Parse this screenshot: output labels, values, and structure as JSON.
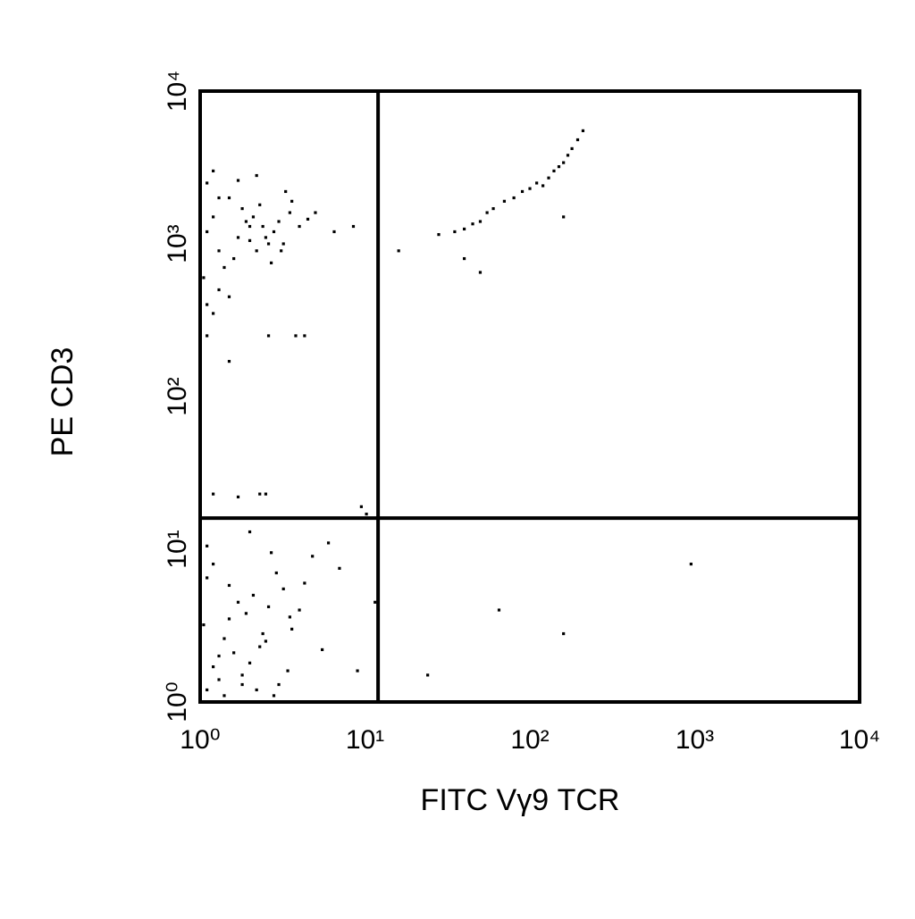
{
  "chart_data": {
    "type": "scatter",
    "x_label": "FITC Vγ9 TCR",
    "y_label": "PE CD3",
    "xscale": "log",
    "yscale": "log",
    "xlim": [
      1,
      10000
    ],
    "ylim": [
      1,
      10000
    ],
    "xticks": [
      {
        "value": 1,
        "label": "10⁰"
      },
      {
        "value": 10,
        "label": "10¹"
      },
      {
        "value": 100,
        "label": "10²"
      },
      {
        "value": 1000,
        "label": "10³"
      },
      {
        "value": 10000,
        "label": "10⁴"
      }
    ],
    "yticks": [
      {
        "value": 1,
        "label": "10⁰"
      },
      {
        "value": 10,
        "label": "10¹"
      },
      {
        "value": 100,
        "label": "10²"
      },
      {
        "value": 1000,
        "label": "10³"
      },
      {
        "value": 10000,
        "label": "10⁴"
      }
    ],
    "quadrant_lines": {
      "x": 12,
      "y": 16
    },
    "x": [
      1.1,
      1.2,
      1.3,
      1.5,
      1.7,
      2.0,
      2.3,
      2.6,
      3.0,
      3.5,
      1.1,
      1.4,
      1.8,
      2.2,
      2.8,
      3.3,
      4.0,
      1.2,
      1.6,
      2.1,
      2.5,
      1.05,
      1.3,
      1.9,
      2.4,
      3.1,
      5.0,
      6.5,
      1.1,
      1.5,
      2.0,
      2.7,
      3.6,
      1.2,
      1.7,
      8.5,
      1.3,
      2.2,
      3.2,
      4.5,
      1.1,
      1.5,
      2.6,
      3.8,
      4.3,
      1.2,
      1.7,
      2.3,
      2.5,
      9.5,
      10.2,
      1.1,
      1.3,
      1.5,
      1.8,
      2.1,
      2.5,
      3.0,
      3.6,
      4.3,
      5.5,
      1.2,
      1.4,
      1.7,
      2.0,
      2.4,
      2.9,
      3.4,
      4.0,
      1.05,
      1.6,
      2.2,
      2.7,
      3.2,
      1.1,
      1.3,
      1.9,
      2.3,
      2.8,
      6.0,
      7.0,
      1.2,
      1.5,
      2.0,
      2.6,
      3.5,
      4.8,
      1.4,
      1.8,
      9.0,
      1.1,
      35,
      40,
      45,
      50,
      55,
      60,
      70,
      80,
      90,
      100,
      110,
      120,
      130,
      140,
      150,
      160,
      170,
      180,
      195,
      210,
      16,
      40,
      50,
      160,
      28,
      65,
      160,
      950,
      24,
      11.5
    ],
    "series": [
      {
        "color": "#000000",
        "values": [
          1200,
          1500,
          900,
          2000,
          1100,
          1300,
          1800,
          1000,
          1400,
          1600,
          2500,
          700,
          1700,
          900,
          1200,
          2200,
          1300,
          3000,
          800,
          1500,
          1100,
          600,
          2000,
          1400,
          1300,
          900,
          1600,
          1200,
          400,
          450,
          1050,
          750,
          1900,
          350,
          2600,
          1300,
          500,
          2800,
          1000,
          1450,
          250,
          170,
          250,
          250,
          250,
          23,
          22,
          23,
          23,
          19,
          17,
          1.2,
          2.0,
          3.5,
          1.5,
          5.0,
          2.5,
          1.3,
          3.0,
          6.0,
          2.2,
          8.0,
          1.1,
          4.5,
          1.8,
          2.8,
          7.0,
          1.6,
          4.0,
          3.2,
          2.1,
          1.2,
          9.5,
          5.5,
          6.5,
          1.4,
          3.8,
          2.3,
          1.1,
          11,
          7.5,
          1.7,
          5.8,
          13,
          4.2,
          3.6,
          9.0,
          2.6,
          1.3,
          1.6,
          10.5,
          1200,
          1250,
          1350,
          1400,
          1600,
          1700,
          1900,
          2000,
          2200,
          2300,
          2500,
          2400,
          2700,
          3000,
          3200,
          3400,
          3800,
          4200,
          4800,
          5500,
          900,
          800,
          650,
          1500,
          1150,
          4,
          2.8,
          8,
          1.5,
          4.5
        ]
      }
    ]
  }
}
